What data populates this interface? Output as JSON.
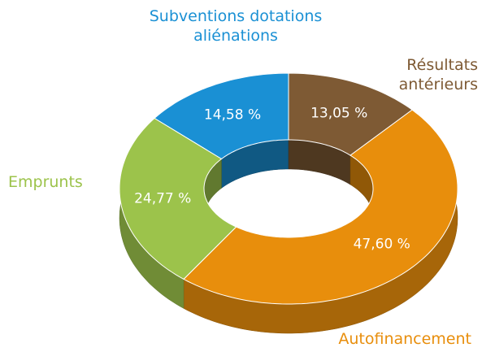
{
  "chart_data": {
    "type": "donut3d",
    "categories": [
      "Subventions dotations aliénations",
      "Résultats antérieurs",
      "Autofinancement",
      "Emprunts"
    ],
    "values": [
      14.58,
      13.05,
      47.6,
      24.77
    ],
    "value_labels": [
      "14,58 %",
      "13,05 %",
      "47,60 %",
      "24,77 %"
    ],
    "colors": [
      "#1a90d4",
      "#7e5a34",
      "#e88e0c",
      "#9cc34b"
    ]
  }
}
